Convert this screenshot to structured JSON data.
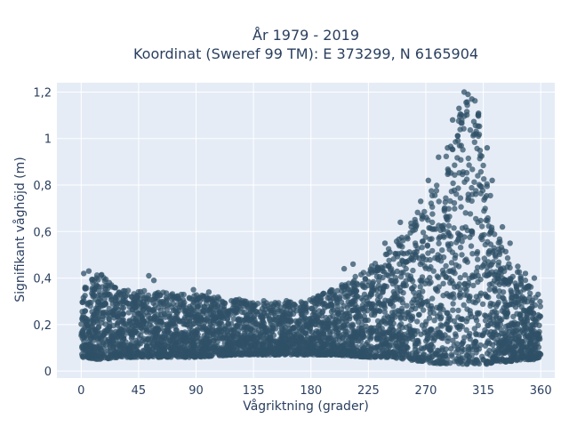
{
  "chart_data": {
    "type": "scatter",
    "title_lines": [
      "År 1979 - 2019",
      "Koordinat (Sweref 99 TM): E 373299, N 6165904"
    ],
    "xlabel": "Vågriktning (grader)",
    "ylabel": "Signifikant våghöjd (m)",
    "xlim": [
      -19,
      371
    ],
    "ylim": [
      -0.03,
      1.24
    ],
    "xticks": [
      0,
      45,
      90,
      135,
      180,
      225,
      270,
      315,
      360
    ],
    "xtick_labels": [
      "0",
      "45",
      "90",
      "135",
      "180",
      "225",
      "270",
      "315",
      "360"
    ],
    "yticks": [
      0,
      0.2,
      0.4,
      0.6,
      0.8,
      1.0,
      1.2
    ],
    "ytick_labels": [
      "0",
      "0,2",
      "0,4",
      "0,6",
      "0,8",
      "1",
      "1,2"
    ],
    "grid": true,
    "legend": false,
    "colors": {
      "marker": "#2f5067",
      "plot_bg": "#e5ecf6",
      "grid": "#ffffff",
      "text": "#2a3f5f"
    },
    "envelope": {
      "direction_deg": [
        0,
        15,
        30,
        45,
        60,
        90,
        120,
        150,
        180,
        200,
        225,
        240,
        255,
        270,
        280,
        290,
        297,
        302,
        307,
        312,
        318,
        325,
        335,
        345,
        355,
        360
      ],
      "lower_m": [
        0.06,
        0.05,
        0.06,
        0.06,
        0.06,
        0.06,
        0.07,
        0.07,
        0.07,
        0.07,
        0.06,
        0.06,
        0.05,
        0.04,
        0.03,
        0.03,
        0.03,
        0.03,
        0.03,
        0.03,
        0.03,
        0.04,
        0.04,
        0.05,
        0.05,
        0.06
      ],
      "upper_m": [
        0.38,
        0.42,
        0.36,
        0.35,
        0.34,
        0.33,
        0.31,
        0.3,
        0.31,
        0.36,
        0.44,
        0.52,
        0.62,
        0.73,
        0.85,
        0.98,
        1.12,
        1.19,
        1.2,
        1.1,
        0.85,
        0.6,
        0.5,
        0.42,
        0.34,
        0.3
      ]
    },
    "outliers": [
      {
        "x": 2,
        "y": 0.42
      },
      {
        "x": 6,
        "y": 0.43
      },
      {
        "x": 12,
        "y": 0.4
      },
      {
        "x": 22,
        "y": 0.38
      },
      {
        "x": 53,
        "y": 0.41
      },
      {
        "x": 57,
        "y": 0.39
      },
      {
        "x": 88,
        "y": 0.35
      },
      {
        "x": 100,
        "y": 0.34
      },
      {
        "x": 206,
        "y": 0.44
      },
      {
        "x": 213,
        "y": 0.46
      },
      {
        "x": 238,
        "y": 0.55
      },
      {
        "x": 250,
        "y": 0.64
      },
      {
        "x": 266,
        "y": 0.73
      },
      {
        "x": 272,
        "y": 0.82
      },
      {
        "x": 280,
        "y": 0.92
      },
      {
        "x": 287,
        "y": 0.96
      },
      {
        "x": 291,
        "y": 1.08
      },
      {
        "x": 296,
        "y": 1.13
      },
      {
        "x": 300,
        "y": 1.2
      },
      {
        "x": 303,
        "y": 1.19
      },
      {
        "x": 306,
        "y": 1.17
      },
      {
        "x": 311,
        "y": 1.1
      },
      {
        "x": 318,
        "y": 0.96
      },
      {
        "x": 322,
        "y": 0.82
      },
      {
        "x": 330,
        "y": 0.62
      },
      {
        "x": 336,
        "y": 0.55
      },
      {
        "x": 342,
        "y": 0.45
      },
      {
        "x": 348,
        "y": 0.42
      },
      {
        "x": 355,
        "y": 0.4
      },
      {
        "x": 358,
        "y": 0.33
      }
    ]
  }
}
